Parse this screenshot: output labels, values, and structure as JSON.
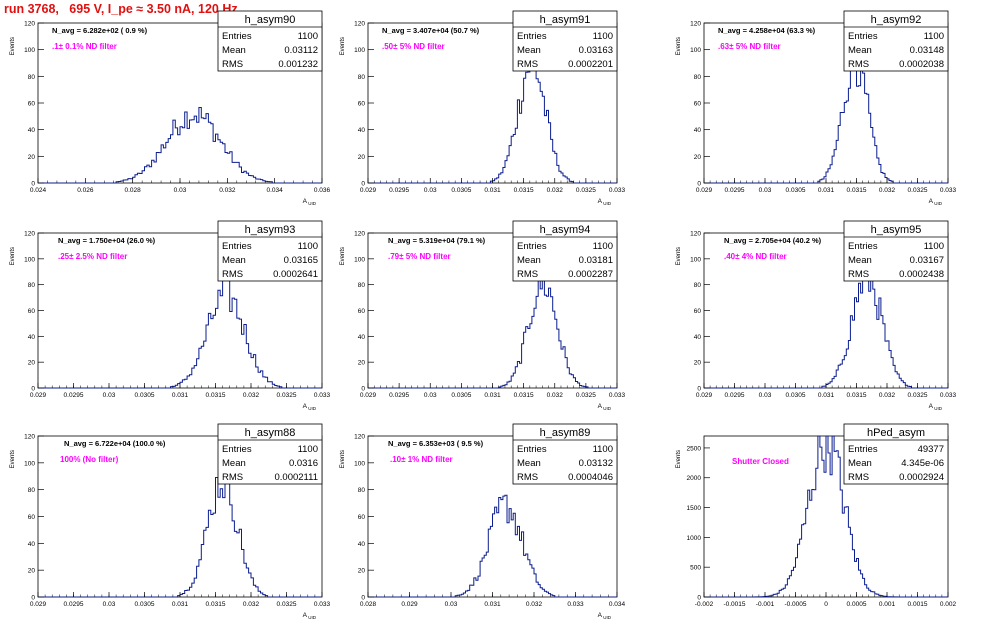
{
  "header": {
    "run_title": "run 3768,   695 V, I_pe ≈ 3.50 nA, 120 Hz"
  },
  "chart_data": [
    {
      "type": "histogram",
      "name": "h_asym90",
      "ylabel": "Events",
      "xlabel": "A_UID",
      "xlim": [
        0.024,
        0.037
      ],
      "ylim": [
        0,
        120
      ],
      "xticks": [
        "0.024",
        "0.026",
        "0.028",
        "0.03",
        "0.032",
        "0.034",
        "0.036"
      ],
      "yticks": [
        "0",
        "20",
        "40",
        "60",
        "80",
        "100",
        "120"
      ],
      "navg": "N_avg = 6.282e+02 ( 0.9 %)",
      "filter": ".1± 0.1% ND filter",
      "stats": {
        "entries": "1100",
        "mean": "0.03112",
        "rms": "0.001232"
      },
      "mu": 0.03112,
      "sigma": 0.001232,
      "peak": 52
    },
    {
      "type": "histogram",
      "name": "h_asym91",
      "ylabel": "Events",
      "xlabel": "A_UID",
      "xlim": [
        0.029,
        0.033
      ],
      "ylim": [
        0,
        120
      ],
      "xticks": [
        "0.029",
        "0.0295",
        "0.03",
        "0.0305",
        "0.031",
        "0.0315",
        "0.032",
        "0.0325",
        "0.033"
      ],
      "yticks": [
        "0",
        "20",
        "40",
        "60",
        "80",
        "100",
        "120"
      ],
      "navg": "N_avg = 3.407e+04 (50.7 %)",
      "filter": ".50± 5% ND filter",
      "stats": {
        "entries": "1100",
        "mean": "0.03163",
        "rms": "0.0002201"
      },
      "mu": 0.03163,
      "sigma": 0.0002201,
      "peak": 90
    },
    {
      "type": "histogram",
      "name": "h_asym92",
      "ylabel": "Events",
      "xlabel": "A_UID",
      "xlim": [
        0.029,
        0.033
      ],
      "ylim": [
        0,
        120
      ],
      "xticks": [
        "0.029",
        "0.0295",
        "0.03",
        "0.0305",
        "0.031",
        "0.0315",
        "0.032",
        "0.0325",
        "0.033"
      ],
      "yticks": [
        "0",
        "20",
        "40",
        "60",
        "80",
        "100",
        "120"
      ],
      "navg": "N_avg = 4.258e+04 (63.3 %)",
      "filter": ".63± 5% ND filter",
      "stats": {
        "entries": "1100",
        "mean": "0.03148",
        "rms": "0.0002038"
      },
      "mu": 0.03148,
      "sigma": 0.0002038,
      "peak": 92
    },
    {
      "type": "histogram",
      "name": "h_asym93",
      "ylabel": "Events",
      "xlabel": "A_UID",
      "xlim": [
        0.029,
        0.033
      ],
      "ylim": [
        0,
        120
      ],
      "xticks": [
        "0.029",
        "0.0295",
        "0.03",
        "0.0305",
        "0.031",
        "0.0315",
        "0.032",
        "0.0325",
        "0.033"
      ],
      "yticks": [
        "0",
        "20",
        "40",
        "60",
        "80",
        "100",
        "120"
      ],
      "navg": "N_avg = 1.750e+04 (26.0 %)",
      "filter": ".25± 2.5% ND filter",
      "stats": {
        "entries": "1100",
        "mean": "0.03165",
        "rms": "0.0002641"
      },
      "mu": 0.03165,
      "sigma": 0.0002641,
      "peak": 72
    },
    {
      "type": "histogram",
      "name": "h_asym94",
      "ylabel": "Events",
      "xlabel": "A_UID",
      "xlim": [
        0.029,
        0.033
      ],
      "ylim": [
        0,
        120
      ],
      "xticks": [
        "0.029",
        "0.0295",
        "0.03",
        "0.0305",
        "0.031",
        "0.0315",
        "0.032",
        "0.0325",
        "0.033"
      ],
      "yticks": [
        "0",
        "20",
        "40",
        "60",
        "80",
        "100",
        "120"
      ],
      "navg": "N_avg = 5.319e+04 (79.1 %)",
      "filter": ".79± 5% ND filter",
      "stats": {
        "entries": "1100",
        "mean": "0.03181",
        "rms": "0.0002287"
      },
      "mu": 0.03181,
      "sigma": 0.0002287,
      "peak": 82
    },
    {
      "type": "histogram",
      "name": "h_asym95",
      "ylabel": "Events",
      "xlabel": "A_UID",
      "xlim": [
        0.029,
        0.033
      ],
      "ylim": [
        0,
        120
      ],
      "xticks": [
        "0.029",
        "0.0295",
        "0.03",
        "0.0305",
        "0.031",
        "0.0315",
        "0.032",
        "0.0325",
        "0.033"
      ],
      "yticks": [
        "0",
        "20",
        "40",
        "60",
        "80",
        "100",
        "120"
      ],
      "navg": "N_avg = 2.705e+04 (40.2 %)",
      "filter": ".40± 4% ND filter",
      "stats": {
        "entries": "1100",
        "mean": "0.03167",
        "rms": "0.0002438"
      },
      "mu": 0.03167,
      "sigma": 0.0002438,
      "peak": 86
    },
    {
      "type": "histogram",
      "name": "h_asym88",
      "ylabel": "Events",
      "xlabel": "A_UID",
      "xlim": [
        0.029,
        0.033
      ],
      "ylim": [
        0,
        120
      ],
      "xticks": [
        "0.029",
        "0.0295",
        "0.03",
        "0.0305",
        "0.031",
        "0.0315",
        "0.032",
        "0.0325",
        "0.033"
      ],
      "yticks": [
        "0",
        "20",
        "40",
        "60",
        "80",
        "100",
        "120"
      ],
      "navg": "N_avg = 6.722e+04 (100.0 %)",
      "filter": "100% (No filter)",
      "stats": {
        "entries": "1100",
        "mean": "0.0316",
        "rms": "0.0002111"
      },
      "mu": 0.0316,
      "sigma": 0.0002111,
      "peak": 88
    },
    {
      "type": "histogram",
      "name": "h_asym89",
      "ylabel": "Events",
      "xlabel": "A_UID",
      "xlim": [
        0.028,
        0.034
      ],
      "ylim": [
        0,
        120
      ],
      "xticks": [
        "0.028",
        "0.029",
        "0.03",
        "0.031",
        "0.032",
        "0.033",
        "0.034"
      ],
      "yticks": [
        "0",
        "20",
        "40",
        "60",
        "80",
        "100",
        "120"
      ],
      "navg": "N_avg = 6.353e+03 ( 9.5 %)",
      "filter": ".10± 1% ND filter",
      "stats": {
        "entries": "1100",
        "mean": "0.03132",
        "rms": "0.0004046"
      },
      "mu": 0.03132,
      "sigma": 0.0004046,
      "peak": 68
    },
    {
      "type": "histogram",
      "name": "hPed_asym",
      "ylabel": "Events",
      "xlabel": "",
      "xlim": [
        -0.002,
        0.002
      ],
      "ylim": [
        0,
        2700
      ],
      "xticks": [
        "-0.002",
        "-0.0015",
        "-0.001",
        "-0.0005",
        "0",
        "0.0005",
        "0.001",
        "0.0015",
        "0.002"
      ],
      "yticks": [
        "0",
        "500",
        "1000",
        "1500",
        "2000",
        "2500"
      ],
      "navg": "",
      "filter": "Shutter Closed",
      "stats": {
        "entries": "49377",
        "mean": "4.345e-06",
        "rms": "0.0002924"
      },
      "mu": 4.345e-06,
      "sigma": 0.0002924,
      "peak": 2620
    }
  ],
  "colors": {
    "histogram": "#0b1d8f",
    "filter_text": "#ff00ff",
    "title": "#e01010"
  }
}
